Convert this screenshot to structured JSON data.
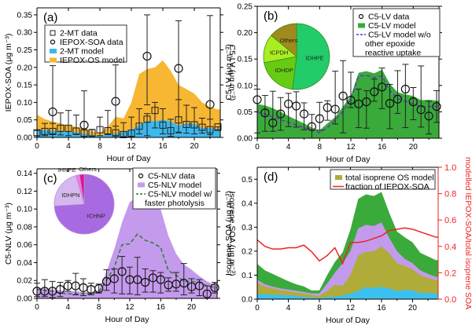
{
  "chart_data": [
    {
      "id": "a",
      "type": "area",
      "panel_label": "(a)",
      "xlabel": "Hour of Day",
      "ylabel": "IEPOX-SOA (μg m⁻³)",
      "xlim": [
        0,
        23.3
      ],
      "ylim": [
        0,
        0.37
      ],
      "xticks": [
        0,
        4,
        8,
        12,
        16,
        20
      ],
      "yticks": [
        0.0,
        0.05,
        0.1,
        0.15,
        0.2,
        0.25,
        0.3,
        0.35
      ],
      "ytick_labels": [
        "0.00",
        "0.05",
        "0.10",
        "0.15",
        "0.20",
        "0.25",
        "0.30",
        "0.35"
      ],
      "right_ylabel": "C5-LV (μg m⁻³)",
      "legend": {
        "position": "top-left",
        "entries": [
          {
            "label": "2-MT data",
            "marker": "square"
          },
          {
            "label": "IEPOX-SOA data",
            "marker": "circle"
          },
          {
            "label": "2-MT model",
            "marker": "fill",
            "color": "#3bb8ee"
          },
          {
            "label": "IEPOX-OS model",
            "marker": "fill",
            "color": "#f7b733"
          }
        ]
      },
      "x": [
        0,
        1,
        2,
        3,
        4,
        5,
        6,
        7,
        8,
        9,
        10,
        11,
        12,
        13,
        14,
        15,
        16,
        17,
        18,
        19,
        20,
        21,
        22,
        23
      ],
      "series": [
        {
          "name": "2-MT model",
          "kind": "area",
          "color": "#3bb8ee",
          "values": [
            0.022,
            0.02,
            0.019,
            0.017,
            0.016,
            0.014,
            0.01,
            0.007,
            0.005,
            0.008,
            0.011,
            0.015,
            0.022,
            0.035,
            0.047,
            0.046,
            0.051,
            0.045,
            0.034,
            0.04,
            0.038,
            0.027,
            0.027,
            0.024
          ]
        },
        {
          "name": "IEPOX-OS model (cumulative)",
          "kind": "area",
          "color": "#f7b733",
          "values": [
            0.065,
            0.052,
            0.045,
            0.04,
            0.035,
            0.03,
            0.025,
            0.018,
            0.012,
            0.03,
            0.059,
            0.054,
            0.1,
            0.181,
            0.195,
            0.2,
            0.22,
            0.19,
            0.15,
            0.138,
            0.125,
            0.1,
            0.087,
            0.08
          ]
        },
        {
          "name": "2-MT data",
          "kind": "points",
          "marker": "square",
          "values": [
            0.013,
            0.017,
            0.017,
            0.026,
            0.026,
            0.018,
            0.012,
            0.013,
            0.022,
            0.019,
            0.013,
            0.008,
            0.012,
            0.032,
            0.052,
            0.077,
            0.035,
            0.019,
            0.05,
            0.037,
            0.036,
            0.029,
            0.022,
            0.03
          ],
          "err_low": [
            0.005,
            0.005,
            0.01,
            0.007,
            0.005,
            0.008,
            0.003,
            0.003,
            0.005,
            0.008,
            0.005,
            0.002,
            0.002,
            0.01,
            0.005,
            0.027,
            0.01,
            0.003,
            0.015,
            0.012,
            0.01,
            0.012,
            0.008,
            0.02
          ],
          "err_high": [
            0.02,
            0.04,
            0.04,
            0.07,
            0.077,
            0.064,
            0.025,
            0.023,
            0.058,
            0.077,
            0.032,
            0.042,
            0.058,
            0.082,
            0.068,
            0.1,
            0.082,
            0.052,
            0.108,
            0.092,
            0.085,
            0.055,
            0.052,
            0.03
          ]
        },
        {
          "name": "IEPOX-SOA data",
          "kind": "points",
          "marker": "circle",
          "x": [
            2,
            6,
            10,
            14,
            18,
            22
          ],
          "values": [
            0.073,
            0.035,
            0.103,
            0.232,
            0.197,
            0.094
          ],
          "err_low": [
            0.0,
            0.0,
            0.0,
            0.093,
            0.013,
            0.0
          ],
          "err_high": [
            0.205,
            0.133,
            0.207,
            0.35,
            0.333,
            0.348
          ]
        }
      ]
    },
    {
      "id": "b",
      "type": "area",
      "panel_label": "(b)",
      "xlabel": "Hour of Day",
      "ylabel": "C5-LV (μg m⁻³)",
      "xlim": [
        0,
        23.3
      ],
      "ylim": [
        0,
        0.25
      ],
      "xticks": [
        0,
        4,
        8,
        12,
        16,
        20
      ],
      "yticks": [
        0.0,
        0.05,
        0.1,
        0.15,
        0.2,
        0.25
      ],
      "ytick_labels": [
        "0.00",
        "0.05",
        "0.10",
        "0.15",
        "0.20",
        "0.25"
      ],
      "legend": {
        "position": "top-right",
        "entries": [
          {
            "label": "C5-LV data",
            "marker": "circle"
          },
          {
            "label": "C5-LV model",
            "marker": "fill",
            "color": "#3aaa3a"
          },
          {
            "label": "C5-LV model w/o",
            "marker": "dash",
            "color": "#6633cc"
          },
          {
            "label": "other epoxide",
            "marker": "none"
          },
          {
            "label": "reactive uptake",
            "marker": "none"
          }
        ]
      },
      "pie": {
        "slices": [
          {
            "label": "IDHPE",
            "value": 0.52,
            "color": "#22cc6a"
          },
          {
            "label": "IDHDP",
            "value": 0.2,
            "color": "#66cc11"
          },
          {
            "label": "ICPDH",
            "value": 0.14,
            "color": "#aaee22"
          },
          {
            "label": "Others",
            "value": 0.14,
            "color": "#a08a1e"
          }
        ]
      },
      "x": [
        0,
        1,
        2,
        3,
        4,
        5,
        6,
        7,
        8,
        9,
        10,
        11,
        12,
        13,
        14,
        15,
        16,
        17,
        18,
        19,
        20,
        21,
        22,
        23
      ],
      "series": [
        {
          "name": "C5-LV model",
          "kind": "area",
          "color": "#3aaa3a",
          "values": [
            0.065,
            0.062,
            0.057,
            0.05,
            0.042,
            0.035,
            0.028,
            0.02,
            0.015,
            0.028,
            0.04,
            0.06,
            0.08,
            0.124,
            0.127,
            0.123,
            0.13,
            0.103,
            0.087,
            0.083,
            0.08,
            0.072,
            0.073,
            0.071
          ]
        },
        {
          "name": "C5-LV model w/o other epoxide reactive uptake",
          "kind": "line",
          "color": "#6633cc",
          "dash": true,
          "values": [
            0.05,
            0.046,
            0.04,
            0.035,
            0.03,
            0.025,
            0.02,
            0.015,
            0.01,
            0.02,
            0.035,
            0.05,
            0.075,
            0.118,
            0.119,
            0.115,
            0.118,
            0.09,
            0.075,
            0.07,
            0.065,
            0.06,
            0.06,
            0.06
          ]
        },
        {
          "name": "C5-LV data",
          "kind": "points",
          "marker": "circle",
          "values": [
            0.073,
            0.048,
            0.029,
            0.046,
            0.065,
            0.061,
            0.046,
            0.022,
            0.037,
            0.058,
            0.055,
            0.08,
            0.072,
            0.065,
            0.069,
            0.088,
            0.097,
            0.066,
            0.074,
            0.093,
            0.069,
            0.054,
            0.042,
            0.06
          ],
          "err_low": [
            0.01,
            0.013,
            0.013,
            0.015,
            0.022,
            0.021,
            0.016,
            0.0,
            0.015,
            0.034,
            0.027,
            0.01,
            0.058,
            0.02,
            0.019,
            0.07,
            0.056,
            0.018,
            0.047,
            0.02,
            0.035,
            0.021,
            0.008,
            0.03
          ],
          "err_high": [
            0.093,
            0.081,
            0.089,
            0.077,
            0.085,
            0.088,
            0.067,
            0.045,
            0.068,
            0.071,
            0.127,
            0.147,
            0.125,
            0.093,
            0.09,
            0.112,
            0.133,
            0.102,
            0.128,
            0.14,
            0.096,
            0.137,
            0.07,
            0.09
          ]
        }
      ]
    },
    {
      "id": "c",
      "type": "area",
      "panel_label": "(c)",
      "xlabel": "Hour of Day",
      "ylabel": "C5-NLV (μg m⁻³)",
      "xlim": [
        0,
        23.3
      ],
      "ylim": [
        0,
        0.145
      ],
      "xticks": [
        0,
        4,
        8,
        12,
        16,
        20
      ],
      "yticks": [
        0.0,
        0.02,
        0.04,
        0.06,
        0.08,
        0.1,
        0.12,
        0.14
      ],
      "ytick_labels": [
        "0.00",
        "0.02",
        "0.04",
        "0.06",
        "0.08",
        "0.10",
        "0.12",
        "0.14"
      ],
      "right_ylabel": "Isoprene SOA (μg m⁻³)",
      "legend": {
        "position": "top-right",
        "entries": [
          {
            "label": "C5-NLV data",
            "marker": "circle"
          },
          {
            "label": "C5-NLV model",
            "marker": "fill",
            "color": "#c49aec"
          },
          {
            "label": "C5-NLV model w/",
            "marker": "dash",
            "color": "#2e7d32"
          },
          {
            "label": "faster photolysis",
            "marker": "none"
          }
        ]
      },
      "pie": {
        "slices": [
          {
            "label": "ICHNP",
            "value": 0.74,
            "color": "#a86ae0"
          },
          {
            "label": "IDHPN",
            "value": 0.215,
            "color": "#d5b8ee"
          },
          {
            "label": "IHNPE",
            "value": 0.02,
            "color": "#f07ad8"
          },
          {
            "label": "Others",
            "value": 0.025,
            "color": "#e0148c"
          }
        ]
      },
      "x": [
        0,
        1,
        2,
        3,
        4,
        5,
        6,
        7,
        8,
        9,
        10,
        11,
        12,
        13,
        14,
        15,
        16,
        17,
        18,
        19,
        20,
        21,
        22,
        23
      ],
      "series": [
        {
          "name": "C5-NLV model",
          "kind": "area",
          "color": "#c49aec",
          "values": [
            0.012,
            0.011,
            0.01,
            0.009,
            0.008,
            0.008,
            0.007,
            0.007,
            0.009,
            0.03,
            0.055,
            0.085,
            0.108,
            0.113,
            0.113,
            0.108,
            0.1,
            0.07,
            0.05,
            0.038,
            0.032,
            0.025,
            0.019,
            0.015
          ]
        },
        {
          "name": "C5-NLV model w/ faster photolysis",
          "kind": "line",
          "color": "#2e7d32",
          "dash": true,
          "values": [
            0.01,
            0.009,
            0.008,
            0.006,
            0.005,
            0.005,
            0.005,
            0.005,
            0.007,
            0.02,
            0.035,
            0.06,
            0.061,
            0.072,
            0.065,
            0.062,
            0.057,
            0.031,
            0.026,
            0.019,
            0.019,
            0.018,
            0.014,
            0.012
          ]
        },
        {
          "name": "C5-NLV data",
          "kind": "points",
          "marker": "circle",
          "values": [
            0.008,
            0.008,
            0.008,
            0.01,
            0.014,
            0.014,
            0.012,
            0.01,
            0.011,
            0.019,
            0.022,
            0.03,
            0.021,
            0.021,
            0.018,
            0.023,
            0.021,
            0.015,
            0.016,
            0.017,
            0.013,
            0.014,
            0.005,
            0.012
          ],
          "err_low": [
            0.002,
            0.002,
            0.001,
            0.002,
            0.008,
            0.004,
            0.003,
            0.004,
            0.006,
            0.009,
            0.006,
            0.005,
            0.005,
            0.004,
            0.007,
            0.007,
            0.006,
            0.008,
            0.008,
            0.004,
            0.006,
            0.003,
            0.0,
            0.006
          ],
          "err_high": [
            0.017,
            0.021,
            0.019,
            0.018,
            0.02,
            0.028,
            0.022,
            0.017,
            0.016,
            0.032,
            0.033,
            0.047,
            0.035,
            0.046,
            0.033,
            0.031,
            0.029,
            0.023,
            0.029,
            0.039,
            0.022,
            0.021,
            0.014,
            0.018
          ]
        }
      ]
    },
    {
      "id": "d",
      "type": "area",
      "panel_label": "(d)",
      "xlabel": "Hour of Day",
      "ylabel": "Isoprene SOA (μg m⁻³)",
      "right_ylabel": "modelled IEPOX-SOA/total isoprene SOA",
      "xlim": [
        0,
        23.3
      ],
      "ylim": [
        0,
        0.55
      ],
      "y2lim": [
        0,
        1.0
      ],
      "xticks": [
        0,
        4,
        8,
        12,
        16,
        20
      ],
      "yticks": [
        0.0,
        0.1,
        0.2,
        0.3,
        0.4,
        0.5
      ],
      "ytick_labels": [
        "0.0",
        "0.1",
        "0.2",
        "0.3",
        "0.4",
        "0.5"
      ],
      "y2ticks": [
        0.0,
        0.2,
        0.4,
        0.6,
        0.8,
        1.0
      ],
      "y2tick_labels": [
        "0.0",
        "0.2",
        "0.4",
        "0.6",
        "0.8",
        "1.0"
      ],
      "y2color": "#ee2222",
      "legend": {
        "position": "top-right",
        "entries": [
          {
            "label": "total isoprene OS model",
            "marker": "fill",
            "color": "#b0ac3a"
          },
          {
            "label": "fraction of IEPOX-SOA",
            "marker": "line",
            "color": "#ee2222"
          }
        ]
      },
      "x": [
        0,
        1,
        2,
        3,
        4,
        5,
        6,
        7,
        8,
        9,
        10,
        11,
        12,
        13,
        14,
        15,
        16,
        17,
        18,
        19,
        20,
        21,
        22,
        23
      ],
      "series": [
        {
          "name": "C5-LV (top, cumulative)",
          "kind": "area",
          "color": "#3aaa3a",
          "values": [
            0.147,
            0.12,
            0.105,
            0.09,
            0.075,
            0.062,
            0.053,
            0.036,
            0.037,
            0.1,
            0.155,
            0.195,
            0.29,
            0.418,
            0.437,
            0.43,
            0.447,
            0.36,
            0.282,
            0.258,
            0.237,
            0.193,
            0.178,
            0.163
          ]
        },
        {
          "name": "C5-NLV (cumulative)",
          "kind": "area",
          "color": "#c49aec",
          "values": [
            0.081,
            0.062,
            0.052,
            0.045,
            0.04,
            0.035,
            0.03,
            0.024,
            0.024,
            0.065,
            0.11,
            0.15,
            0.2,
            0.295,
            0.31,
            0.305,
            0.32,
            0.255,
            0.2,
            0.168,
            0.15,
            0.12,
            0.105,
            0.093
          ]
        },
        {
          "name": "total isoprene OS model (cumulative)",
          "kind": "area",
          "color": "#b0ac3a",
          "values": [
            0.068,
            0.052,
            0.045,
            0.038,
            0.033,
            0.028,
            0.024,
            0.017,
            0.014,
            0.035,
            0.06,
            0.055,
            0.1,
            0.183,
            0.197,
            0.2,
            0.22,
            0.192,
            0.15,
            0.138,
            0.125,
            0.1,
            0.088,
            0.08
          ]
        },
        {
          "name": "2-MT (bottom)",
          "kind": "area",
          "color": "#3bc0ef",
          "values": [
            0.023,
            0.02,
            0.019,
            0.017,
            0.016,
            0.013,
            0.01,
            0.007,
            0.005,
            0.009,
            0.011,
            0.015,
            0.022,
            0.035,
            0.05,
            0.047,
            0.051,
            0.045,
            0.034,
            0.039,
            0.037,
            0.025,
            0.026,
            0.023
          ]
        },
        {
          "name": "fraction of IEPOX-SOA",
          "kind": "line",
          "axis": "right",
          "color": "#ee2222",
          "values": [
            0.45,
            0.4,
            0.38,
            0.38,
            0.39,
            0.39,
            0.41,
            0.36,
            0.29,
            0.33,
            0.39,
            0.27,
            0.43,
            0.43,
            0.44,
            0.46,
            0.48,
            0.52,
            0.53,
            0.54,
            0.53,
            0.51,
            0.49,
            0.47
          ]
        }
      ]
    }
  ]
}
